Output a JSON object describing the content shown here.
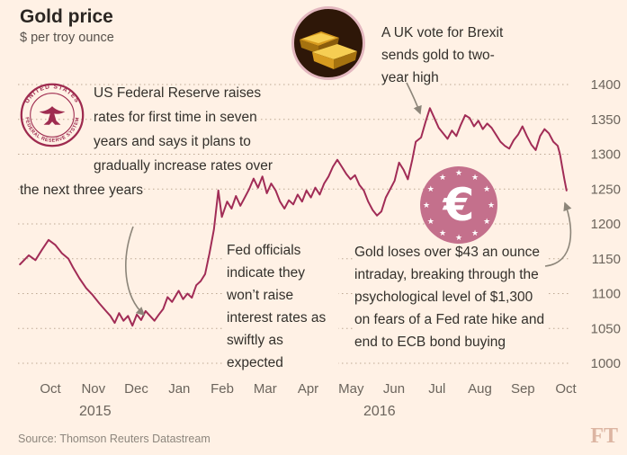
{
  "header": {
    "title": "Gold price",
    "subtitle": "$ per troy ounce"
  },
  "annotations": {
    "fed_raise": {
      "text": "US Federal Reserve raises rates for first time in seven years and says it plans to gradually increase rates over the next three years"
    },
    "brexit": {
      "text": "A UK vote for Brexit sends gold to two-year high"
    },
    "fed_officials": {
      "text": "Fed officials indicate they won’t raise interest rates as swiftly as expected"
    },
    "gold_drop": {
      "text": "Gold loses over $43 an ounce intraday, breaking through the psychological level of $1,300 on fears of a Fed rate hike and end to ECB bond buying"
    }
  },
  "badges": {
    "fed_seal": {
      "top_text": "UNITED STATES",
      "bottom_text": "FEDERAL RESERVE SYSTEM"
    },
    "euro": {
      "symbol": "€"
    },
    "gold_bars": {
      "name": "gold-bars-photo-badge"
    }
  },
  "footer": {
    "source": "Source: Thomson Reuters Datastream",
    "logo": "FT"
  },
  "colors": {
    "background": "#FFF1E5",
    "line": "#A12C56",
    "grid": "#BEA994",
    "axis_text": "#6B645C",
    "annotation_text": "#33302B",
    "euro_badge": "#C4708C",
    "seal": "#9E2B4F",
    "arrow": "#8C8579",
    "gold": "#F2C14E"
  },
  "chart_data": {
    "type": "line",
    "title": "Gold price",
    "ylabel": "$ per troy ounce",
    "ylim": [
      1000,
      1400
    ],
    "yticks": [
      1000,
      1050,
      1100,
      1150,
      1200,
      1250,
      1300,
      1350,
      1400
    ],
    "grid": "dotted-horizontal",
    "legend": "none",
    "x_axis": {
      "unit": "months from Oct 2015",
      "month_labels": [
        "Oct",
        "Nov",
        "Dec",
        "Jan",
        "Feb",
        "Mar",
        "Apr",
        "May",
        "Jun",
        "Jul",
        "Aug",
        "Sep",
        "Oct"
      ],
      "year_labels": [
        "2015",
        "2016"
      ]
    },
    "series": [
      {
        "name": "Gold price ($ per troy ounce)",
        "points": [
          [
            -0.2,
            1142
          ],
          [
            0,
            1155
          ],
          [
            0.15,
            1148
          ],
          [
            0.3,
            1163
          ],
          [
            0.45,
            1177
          ],
          [
            0.6,
            1170
          ],
          [
            0.75,
            1158
          ],
          [
            0.9,
            1150
          ],
          [
            1,
            1138
          ],
          [
            1.15,
            1122
          ],
          [
            1.3,
            1108
          ],
          [
            1.45,
            1098
          ],
          [
            1.6,
            1086
          ],
          [
            1.75,
            1075
          ],
          [
            1.85,
            1068
          ],
          [
            1.95,
            1058
          ],
          [
            2.05,
            1072
          ],
          [
            2.15,
            1061
          ],
          [
            2.25,
            1068
          ],
          [
            2.35,
            1054
          ],
          [
            2.45,
            1070
          ],
          [
            2.55,
            1062
          ],
          [
            2.65,
            1075
          ],
          [
            2.75,
            1068
          ],
          [
            2.85,
            1061
          ],
          [
            2.95,
            1070
          ],
          [
            3.05,
            1078
          ],
          [
            3.15,
            1095
          ],
          [
            3.25,
            1088
          ],
          [
            3.4,
            1104
          ],
          [
            3.5,
            1092
          ],
          [
            3.6,
            1100
          ],
          [
            3.7,
            1094
          ],
          [
            3.8,
            1112
          ],
          [
            3.9,
            1118
          ],
          [
            4,
            1128
          ],
          [
            4.1,
            1158
          ],
          [
            4.2,
            1192
          ],
          [
            4.3,
            1248
          ],
          [
            4.38,
            1210
          ],
          [
            4.5,
            1232
          ],
          [
            4.6,
            1222
          ],
          [
            4.7,
            1240
          ],
          [
            4.8,
            1226
          ],
          [
            4.9,
            1238
          ],
          [
            5,
            1250
          ],
          [
            5.1,
            1265
          ],
          [
            5.2,
            1252
          ],
          [
            5.3,
            1268
          ],
          [
            5.4,
            1244
          ],
          [
            5.5,
            1258
          ],
          [
            5.6,
            1248
          ],
          [
            5.7,
            1232
          ],
          [
            5.8,
            1222
          ],
          [
            5.9,
            1234
          ],
          [
            6,
            1228
          ],
          [
            6.1,
            1242
          ],
          [
            6.2,
            1232
          ],
          [
            6.3,
            1248
          ],
          [
            6.4,
            1238
          ],
          [
            6.5,
            1252
          ],
          [
            6.6,
            1242
          ],
          [
            6.7,
            1258
          ],
          [
            6.8,
            1268
          ],
          [
            6.9,
            1282
          ],
          [
            7,
            1292
          ],
          [
            7.1,
            1282
          ],
          [
            7.2,
            1272
          ],
          [
            7.3,
            1264
          ],
          [
            7.4,
            1270
          ],
          [
            7.5,
            1256
          ],
          [
            7.6,
            1248
          ],
          [
            7.7,
            1232
          ],
          [
            7.8,
            1220
          ],
          [
            7.9,
            1212
          ],
          [
            8,
            1218
          ],
          [
            8.1,
            1238
          ],
          [
            8.2,
            1250
          ],
          [
            8.3,
            1262
          ],
          [
            8.4,
            1288
          ],
          [
            8.5,
            1278
          ],
          [
            8.6,
            1264
          ],
          [
            8.7,
            1292
          ],
          [
            8.78,
            1318
          ],
          [
            8.9,
            1324
          ],
          [
            9,
            1346
          ],
          [
            9.1,
            1366
          ],
          [
            9.2,
            1352
          ],
          [
            9.3,
            1338
          ],
          [
            9.4,
            1330
          ],
          [
            9.5,
            1322
          ],
          [
            9.6,
            1334
          ],
          [
            9.7,
            1326
          ],
          [
            9.8,
            1342
          ],
          [
            9.9,
            1356
          ],
          [
            10,
            1352
          ],
          [
            10.1,
            1340
          ],
          [
            10.2,
            1348
          ],
          [
            10.3,
            1336
          ],
          [
            10.4,
            1344
          ],
          [
            10.5,
            1338
          ],
          [
            10.6,
            1328
          ],
          [
            10.7,
            1318
          ],
          [
            10.8,
            1312
          ],
          [
            10.9,
            1308
          ],
          [
            11,
            1320
          ],
          [
            11.1,
            1328
          ],
          [
            11.2,
            1340
          ],
          [
            11.3,
            1326
          ],
          [
            11.4,
            1314
          ],
          [
            11.5,
            1306
          ],
          [
            11.6,
            1326
          ],
          [
            11.7,
            1336
          ],
          [
            11.8,
            1330
          ],
          [
            11.9,
            1318
          ],
          [
            12,
            1312
          ],
          [
            12.05,
            1300
          ],
          [
            12.1,
            1282
          ],
          [
            12.15,
            1264
          ],
          [
            12.2,
            1248
          ]
        ]
      }
    ]
  }
}
